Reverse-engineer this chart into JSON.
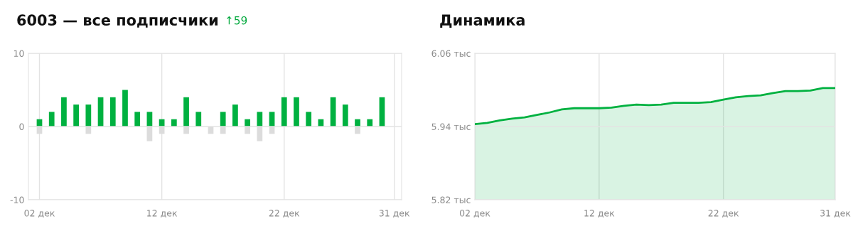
{
  "chart_data": [
    {
      "type": "bar",
      "title": "6003 — все подписчики",
      "annotations": [
        "↑59"
      ],
      "categories": [
        "02 дек",
        null,
        null,
        null,
        null,
        null,
        null,
        null,
        null,
        null,
        "12 дек",
        null,
        null,
        null,
        null,
        null,
        null,
        null,
        null,
        null,
        "22 дек",
        null,
        null,
        null,
        null,
        null,
        null,
        null,
        null,
        "31 дек"
      ],
      "stacked": true,
      "series": [
        {
          "color": "#00b140",
          "values": [
            1,
            2,
            4,
            3,
            3,
            4,
            4,
            5,
            2,
            2,
            1,
            1,
            4,
            2,
            0,
            2,
            3,
            1,
            2,
            2,
            4,
            4,
            2,
            1,
            4,
            3,
            1,
            1,
            4,
            0
          ]
        },
        {
          "color": "#dcdcdc",
          "values": [
            -1,
            0,
            0,
            0,
            -1,
            0,
            0,
            0,
            0,
            -2,
            -1,
            0,
            -1,
            0,
            -1,
            -1,
            0,
            -1,
            -2,
            -1,
            0,
            0,
            0,
            0,
            0,
            0,
            -1,
            0,
            0,
            0
          ]
        }
      ],
      "ylim": [
        -10,
        10
      ],
      "yticks": [
        -10,
        0,
        10
      ],
      "grid": true
    },
    {
      "type": "area",
      "title": "Динамика",
      "categories": [
        "02 дек",
        null,
        null,
        null,
        null,
        null,
        null,
        null,
        null,
        null,
        "12 дек",
        null,
        null,
        null,
        null,
        null,
        null,
        null,
        null,
        null,
        "22 дек",
        null,
        null,
        null,
        null,
        null,
        null,
        null,
        null,
        "31 дек"
      ],
      "series": [
        {
          "color": "#00b140",
          "values": [
            5.944,
            5.946,
            5.95,
            5.953,
            5.955,
            5.959,
            5.963,
            5.968,
            5.97,
            5.97,
            5.97,
            5.971,
            5.974,
            5.976,
            5.975,
            5.976,
            5.979,
            5.979,
            5.979,
            5.98,
            5.984,
            5.988,
            5.99,
            5.991,
            5.995,
            5.998,
            5.998,
            5.999,
            6.003,
            6.003
          ]
        }
      ],
      "ylim": [
        5.82,
        6.06
      ],
      "yticks": [
        {
          "value": 5.82,
          "label": "5.82 тыс"
        },
        {
          "value": 5.94,
          "label": "5.94 тыс"
        },
        {
          "value": 6.06,
          "label": "6.06 тыс"
        }
      ],
      "grid": true
    }
  ]
}
